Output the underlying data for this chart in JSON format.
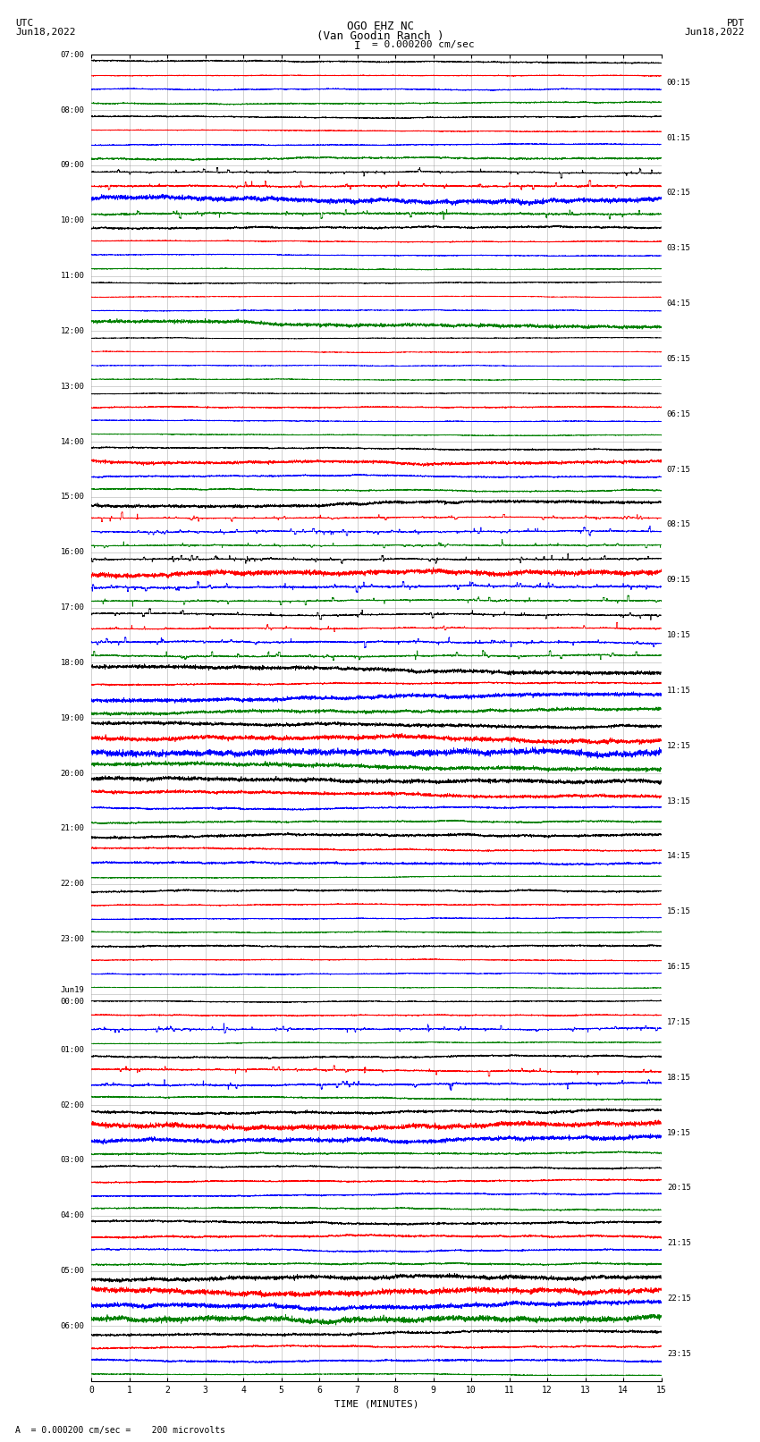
{
  "title_line1": "OGO EHZ NC",
  "title_line2": "(Van Goodin Ranch )",
  "scale_bar": "I = 0.000200 cm/sec",
  "utc_label": "UTC",
  "pdt_label": "PDT",
  "date_left": "Jun18,2022",
  "date_right": "Jun18,2022",
  "xlabel": "TIME (MINUTES)",
  "footer_text": "A  = 0.000200 cm/sec =    200 microvolts",
  "left_times": [
    "07:00",
    "08:00",
    "09:00",
    "10:00",
    "11:00",
    "12:00",
    "13:00",
    "14:00",
    "15:00",
    "16:00",
    "17:00",
    "18:00",
    "19:00",
    "20:00",
    "21:00",
    "22:00",
    "23:00",
    "Jun19\n00:00",
    "01:00",
    "02:00",
    "03:00",
    "04:00",
    "05:00",
    "06:00"
  ],
  "right_times": [
    "00:15",
    "01:15",
    "02:15",
    "03:15",
    "04:15",
    "05:15",
    "06:15",
    "07:15",
    "08:15",
    "09:15",
    "10:15",
    "11:15",
    "12:15",
    "13:15",
    "14:15",
    "15:15",
    "16:15",
    "17:15",
    "18:15",
    "19:15",
    "20:15",
    "21:15",
    "22:15",
    "23:15"
  ],
  "n_rows": 24,
  "x_ticks": [
    0,
    1,
    2,
    3,
    4,
    5,
    6,
    7,
    8,
    9,
    10,
    11,
    12,
    13,
    14,
    15
  ],
  "bg_color": "#ffffff",
  "grid_color": "#808080",
  "trace_colors": [
    "#000000",
    "#ff0000",
    "#0000ff",
    "#008000"
  ],
  "row_configs": [
    {
      "label": "07:00",
      "activity": [
        0.5,
        0.2,
        0.3,
        0.4
      ]
    },
    {
      "label": "08:00",
      "activity": [
        0.4,
        0.3,
        0.3,
        0.5
      ]
    },
    {
      "label": "09:00",
      "activity": [
        3.0,
        2.0,
        1.5,
        2.0
      ]
    },
    {
      "label": "10:00",
      "activity": [
        0.5,
        0.3,
        0.3,
        0.3
      ]
    },
    {
      "label": "11:00",
      "activity": [
        0.3,
        0.2,
        0.2,
        1.5
      ]
    },
    {
      "label": "12:00",
      "activity": [
        0.2,
        0.2,
        0.2,
        0.2
      ]
    },
    {
      "label": "13:00",
      "activity": [
        0.2,
        0.3,
        0.3,
        0.3
      ]
    },
    {
      "label": "14:00",
      "activity": [
        0.5,
        0.8,
        0.5,
        0.5
      ]
    },
    {
      "label": "15:00",
      "activity": [
        1.0,
        4.0,
        4.5,
        3.5
      ]
    },
    {
      "label": "16:00",
      "activity": [
        4.0,
        1.5,
        3.0,
        2.5
      ]
    },
    {
      "label": "17:00",
      "activity": [
        2.5,
        2.0,
        2.5,
        2.0
      ]
    },
    {
      "label": "18:00",
      "activity": [
        1.5,
        0.5,
        1.5,
        1.0
      ]
    },
    {
      "label": "19:00",
      "activity": [
        1.0,
        1.5,
        1.5,
        1.5
      ]
    },
    {
      "label": "20:00",
      "activity": [
        1.0,
        1.0,
        0.5,
        0.5
      ]
    },
    {
      "label": "21:00",
      "activity": [
        0.8,
        0.5,
        0.5,
        0.3
      ]
    },
    {
      "label": "22:00",
      "activity": [
        0.5,
        0.3,
        0.3,
        0.3
      ]
    },
    {
      "label": "23:00",
      "activity": [
        0.4,
        0.3,
        0.3,
        0.2
      ]
    },
    {
      "label": "Jun19\n00:00",
      "activity": [
        0.3,
        0.3,
        4.5,
        0.3
      ]
    },
    {
      "label": "01:00",
      "activity": [
        0.5,
        2.5,
        2.0,
        0.5
      ]
    },
    {
      "label": "02:00",
      "activity": [
        0.8,
        1.5,
        1.5,
        0.5
      ]
    },
    {
      "label": "03:00",
      "activity": [
        0.5,
        0.5,
        0.5,
        0.5
      ]
    },
    {
      "label": "04:00",
      "activity": [
        0.6,
        0.5,
        0.5,
        0.5
      ]
    },
    {
      "label": "05:00",
      "activity": [
        1.0,
        1.5,
        1.5,
        1.5
      ]
    },
    {
      "label": "06:00",
      "activity": [
        0.8,
        0.5,
        0.5,
        0.3
      ]
    }
  ]
}
